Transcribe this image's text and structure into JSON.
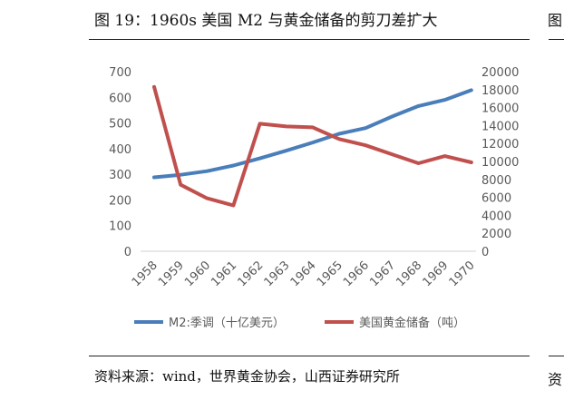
{
  "figure": {
    "title": "图 19：1960s 美国 M2 与黄金储备的剪刀差扩大",
    "source": "资料来源：wind，世界黄金协会，山西证券研究所",
    "right_edge_top": "图",
    "right_edge_bottom": "资"
  },
  "chart_data": {
    "type": "line",
    "x": [
      "1958",
      "1959",
      "1960",
      "1961",
      "1962",
      "1963",
      "1964",
      "1965",
      "1966",
      "1967",
      "1968",
      "1969",
      "1970"
    ],
    "series": [
      {
        "name": "M2:季调（十亿美元）",
        "axis": "left",
        "color": "#4a7ebb",
        "values": [
          288,
          298,
          312,
          334,
          362,
          392,
          424,
          458,
          480,
          525,
          566,
          590,
          628
        ]
      },
      {
        "name": "美国黄金储备（吨）",
        "axis": "right",
        "color": "#c0504d",
        "values": [
          18300,
          7400,
          5900,
          5100,
          14200,
          13900,
          13800,
          12500,
          11800,
          10800,
          9800,
          10600,
          9900
        ]
      }
    ],
    "y_left": {
      "min": 0,
      "max": 700,
      "ticks": [
        0,
        100,
        200,
        300,
        400,
        500,
        600,
        700
      ]
    },
    "y_right": {
      "min": 0,
      "max": 20000,
      "ticks": [
        0,
        2000,
        4000,
        6000,
        8000,
        10000,
        12000,
        14000,
        16000,
        18000,
        20000
      ]
    },
    "grid": false,
    "legend_position": "bottom"
  }
}
